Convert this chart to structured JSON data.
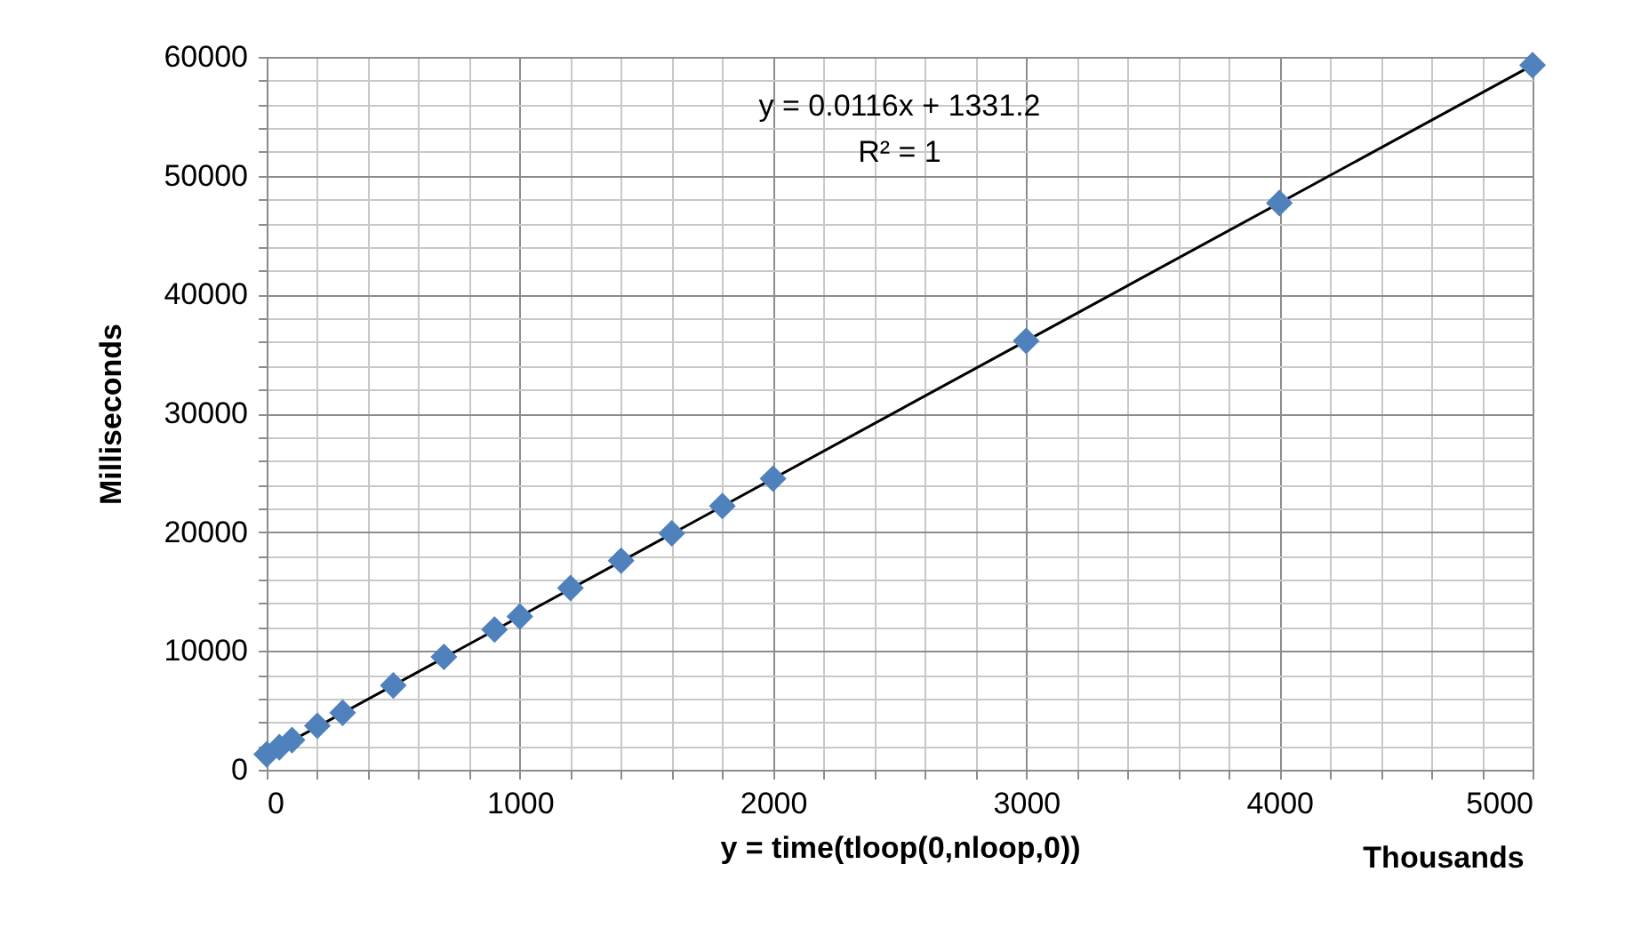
{
  "chart_data": {
    "type": "scatter",
    "xlabel": "y = time(tloop(0,nloop,0))",
    "ylabel": "Milliseconds",
    "annotations": [
      "y = 0.0116x + 1331.2",
      "R² = 1",
      "Thousands"
    ],
    "marker": "diamond",
    "grid": true,
    "xlim": [
      0,
      5000
    ],
    "ylim": [
      0,
      60000
    ],
    "xticks": [
      0,
      {
        "value": 200,
        "label": null
      },
      {
        "value": 400,
        "label": null
      },
      {
        "value": 600,
        "label": null
      },
      {
        "value": 800,
        "label": null
      },
      1000,
      {
        "value": 1200,
        "label": null
      },
      {
        "value": 1400,
        "label": null
      },
      {
        "value": 1600,
        "label": null
      },
      {
        "value": 1800,
        "label": null
      },
      2000,
      {
        "value": 2200,
        "label": null
      },
      {
        "value": 2400,
        "label": null
      },
      {
        "value": 2600,
        "label": null
      },
      {
        "value": 2800,
        "label": null
      },
      3000,
      {
        "value": 3200,
        "label": null
      },
      {
        "value": 3400,
        "label": null
      },
      {
        "value": 3600,
        "label": null
      },
      {
        "value": 3800,
        "label": null
      },
      4000,
      {
        "value": 4200,
        "label": null
      },
      {
        "value": 4400,
        "label": null
      },
      {
        "value": 4600,
        "label": null
      },
      {
        "value": 4800,
        "label": null
      },
      5000
    ],
    "yticks": [
      0,
      {
        "value": 2000,
        "label": null
      },
      {
        "value": 4000,
        "label": null
      },
      {
        "value": 6000,
        "label": null
      },
      {
        "value": 8000,
        "label": null
      },
      10000,
      {
        "value": 12000,
        "label": null
      },
      {
        "value": 14000,
        "label": null
      },
      {
        "value": 16000,
        "label": null
      },
      {
        "value": 18000,
        "label": null
      },
      20000,
      {
        "value": 22000,
        "label": null
      },
      {
        "value": 24000,
        "label": null
      },
      {
        "value": 26000,
        "label": null
      },
      {
        "value": 28000,
        "label": null
      },
      30000,
      {
        "value": 32000,
        "label": null
      },
      {
        "value": 34000,
        "label": null
      },
      {
        "value": 36000,
        "label": null
      },
      {
        "value": 38000,
        "label": null
      },
      40000,
      {
        "value": 42000,
        "label": null
      },
      {
        "value": 44000,
        "label": null
      },
      {
        "value": 46000,
        "label": null
      },
      {
        "value": 48000,
        "label": null
      },
      50000,
      {
        "value": 52000,
        "label": null
      },
      {
        "value": 54000,
        "label": null
      },
      {
        "value": 56000,
        "label": null
      },
      {
        "value": 58000,
        "label": null
      },
      60000
    ],
    "series": [
      {
        "color": "#4f81bd",
        "x": [
          0,
          50,
          100,
          200,
          300,
          500,
          700,
          900,
          1000,
          1200,
          1400,
          1600,
          1800,
          2000,
          3000,
          4000,
          5000
        ],
        "values": [
          1300,
          1900,
          2500,
          3700,
          4800,
          7100,
          9500,
          11800,
          12900,
          15300,
          17600,
          19900,
          22200,
          24500,
          36100,
          47700,
          59300
        ]
      },
      {
        "type": "line",
        "marker": "none",
        "color": "#000000",
        "x": [
          0,
          5000
        ],
        "values": [
          1300,
          59300
        ]
      }
    ]
  }
}
